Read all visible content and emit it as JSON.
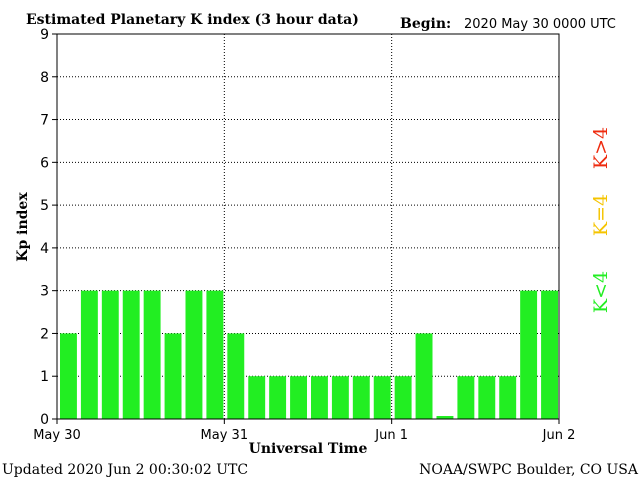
{
  "header": {
    "title": "Estimated Planetary K index (3 hour data)",
    "begin_label": "Begin:",
    "begin_value": "2020 May 30 0000 UTC"
  },
  "footer": {
    "updated": "Updated 2020 Jun  2 00:30:02 UTC",
    "credit": "NOAA/SWPC Boulder, CO USA"
  },
  "legend": {
    "low": "K<4",
    "mid": "K=4",
    "high": "K>4"
  },
  "colors": {
    "low": "#22ee22",
    "mid": "#f5c400",
    "high": "#ee2a0e",
    "grid": "#000000"
  },
  "chart_data": {
    "type": "bar",
    "title": "Estimated Planetary K index (3 hour data)",
    "xlabel": "Universal Time",
    "ylabel": "Kp index",
    "ylim": [
      0,
      9
    ],
    "yticks": [
      0,
      1,
      2,
      3,
      4,
      5,
      6,
      7,
      8,
      9
    ],
    "xtick_labels": [
      "May 30",
      "May 31",
      "Jun 1",
      "Jun 2"
    ],
    "values": [
      2,
      3,
      3,
      3,
      3,
      2,
      3,
      3,
      2,
      1,
      1,
      1,
      1,
      1,
      1,
      1,
      1,
      2,
      0.07,
      1,
      1,
      1,
      3,
      3
    ],
    "grid": true
  }
}
